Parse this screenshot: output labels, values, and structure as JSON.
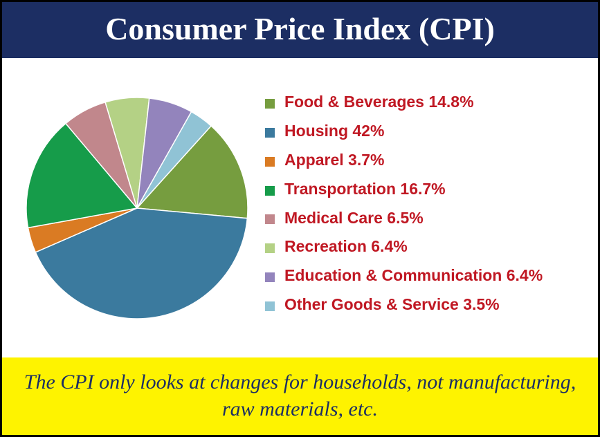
{
  "header": {
    "title": "Consumer Price Index (CPI)",
    "bg_color": "#1c2e63",
    "text_color": "#ffffff",
    "fontsize": 46
  },
  "pie": {
    "type": "pie",
    "slices": [
      {
        "label": "Food & Beverages",
        "pct": 14.8,
        "color": "#769d3f"
      },
      {
        "label": "Housing",
        "pct": 42.0,
        "color": "#3b7a9e"
      },
      {
        "label": "Apparel",
        "pct": 3.7,
        "color": "#da7b23"
      },
      {
        "label": "Transportation",
        "pct": 16.7,
        "color": "#169c4a"
      },
      {
        "label": "Medical Care",
        "pct": 6.5,
        "color": "#c1878c"
      },
      {
        "label": "Recreation",
        "pct": 6.4,
        "color": "#b4d185"
      },
      {
        "label": "Education & Communication",
        "pct": 6.4,
        "color": "#9384bc"
      },
      {
        "label": "Other Goods & Service",
        "pct": 3.5,
        "color": "#90c3d5"
      }
    ],
    "start_angle_deg": -48,
    "radius": 160,
    "stroke": "#ffffff",
    "stroke_width": 1.5
  },
  "legend": {
    "text_color": "#c01823",
    "fontsize": 23,
    "swatch_size": 14
  },
  "footer": {
    "text": "The CPI only looks at changes for households, not manufacturing, raw materials, etc.",
    "bg_color": "#fef300",
    "text_color": "#1c2e63",
    "fontsize": 30
  },
  "background_color": "#ffffff",
  "border_color": "#000000"
}
